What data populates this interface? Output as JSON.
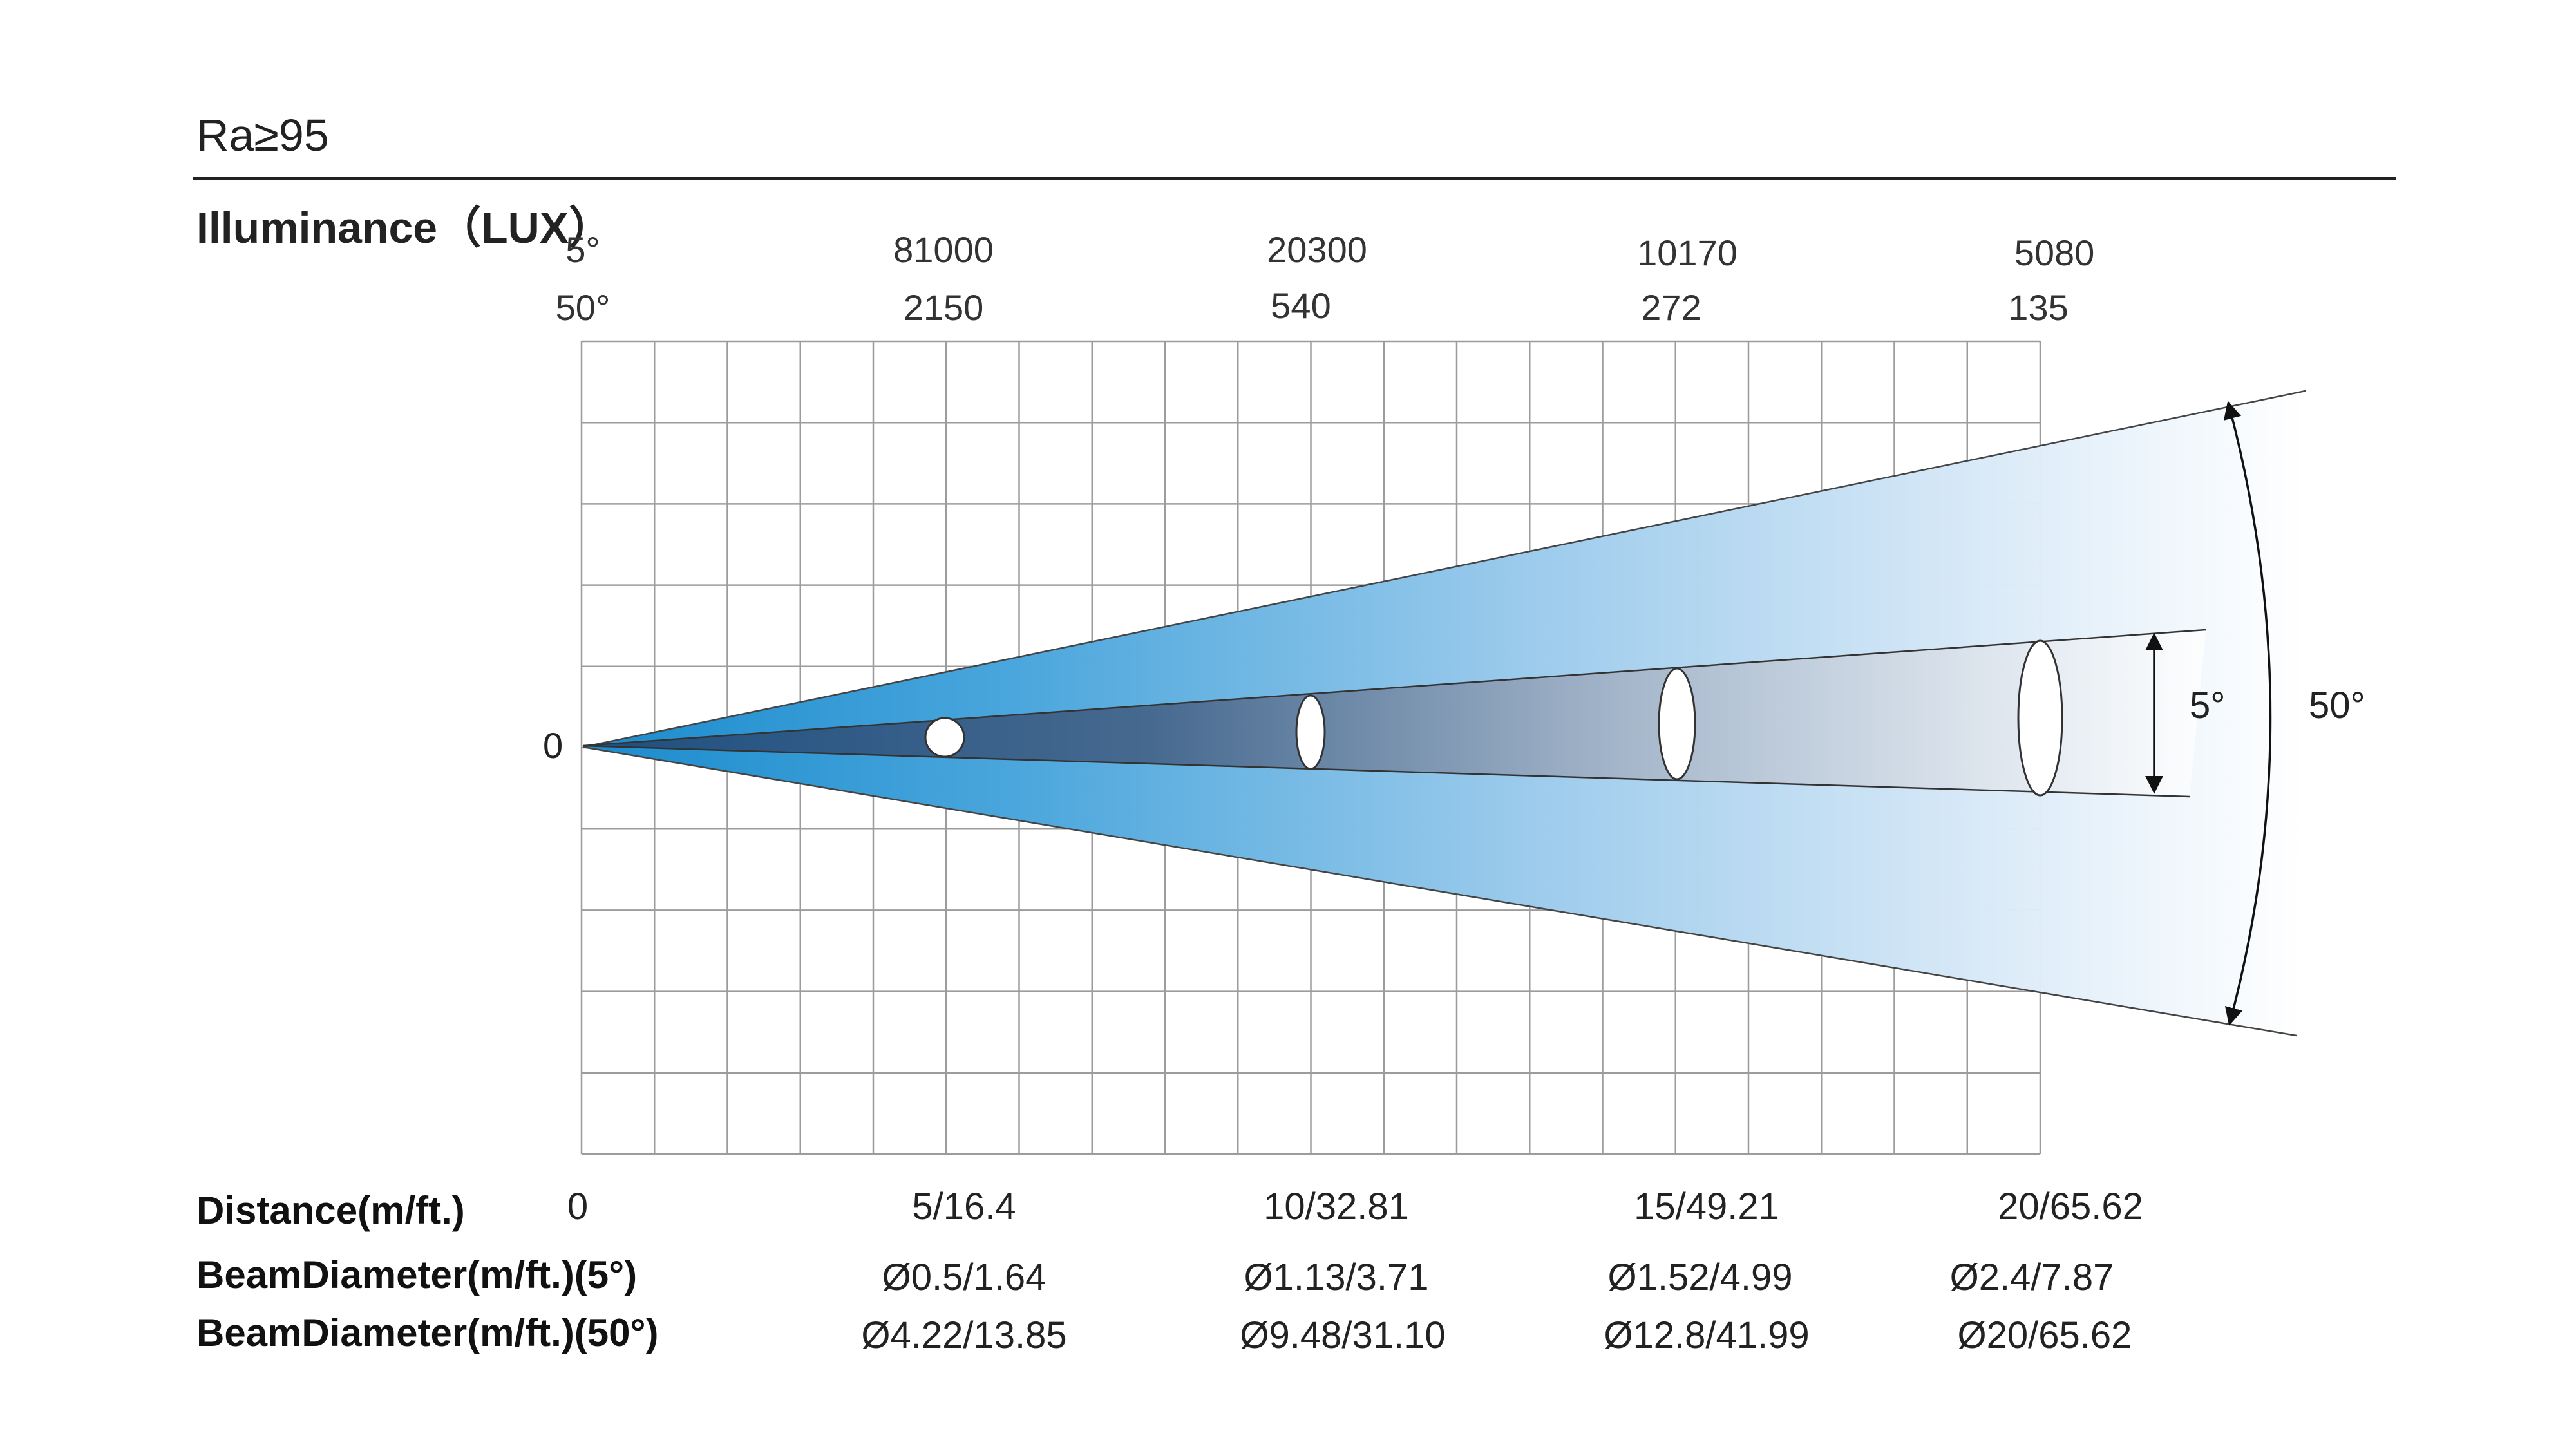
{
  "header": {
    "ra": "Ra≥95",
    "illuminance_label": "Illuminance（LUX）"
  },
  "angles": {
    "narrow": "5°",
    "wide": "50°"
  },
  "illuminance": {
    "narrow_values": [
      "81000",
      "20300",
      "10170",
      "5080"
    ],
    "wide_values": [
      "2150",
      "540",
      "272",
      "135"
    ]
  },
  "origin_label": "0",
  "table": {
    "distance_label": "Distance(m/ft.)",
    "distance_values": [
      "0",
      "5/16.4",
      "10/32.81",
      "15/49.21",
      "20/65.62"
    ],
    "beam5_label": "BeamDiameter(m/ft.)(5°)",
    "beam5_values": [
      "Ø0.5/1.64",
      "Ø1.13/3.71",
      "Ø1.52/4.99",
      "Ø2.4/7.87"
    ],
    "beam50_label": "BeamDiameter(m/ft.)(50°)",
    "beam50_values": [
      "Ø4.22/13.85",
      "Ø9.48/31.10",
      "Ø12.8/41.99",
      "Ø20/65.62"
    ]
  },
  "colors": {
    "beam_start": "#1d8fd0",
    "beam_end": "#ffffff",
    "narrow_beam": "#2a4d78",
    "grid": "#9a9a9a"
  }
}
